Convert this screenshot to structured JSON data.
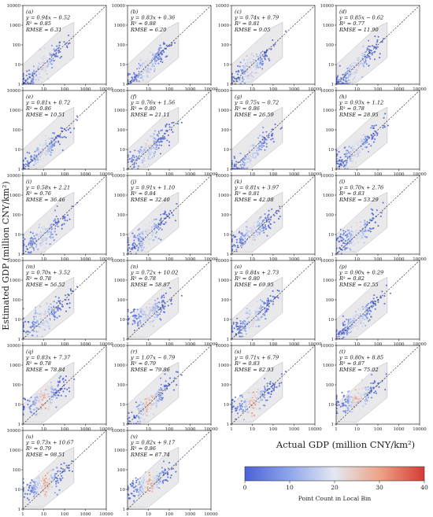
{
  "figure": {
    "ylabel": "Estimated GDP (million CNY/km²)",
    "xlabel": "Actual GDP (million CNY/km²)",
    "colorbar": {
      "label": "Point Count in Local Bin",
      "ticks": [
        0,
        10,
        20,
        30,
        40
      ],
      "range": [
        0,
        40
      ],
      "colors": [
        "#4a62d6",
        "#8fa6ec",
        "#e4e8f2",
        "#eda487",
        "#d53c34"
      ]
    }
  },
  "chart_data": [
    {
      "type": "scatter",
      "panel": "(a)",
      "equation": "y = 0.94x − 0.52",
      "r2": "R² = 0.85",
      "rmse": "RMSE = 6.31",
      "slope": 0.94,
      "intercept": -0.52,
      "spread": 0.26,
      "xlim": [
        1,
        10000
      ],
      "ylim": [
        1,
        10000
      ],
      "xticks": [
        "1",
        "10",
        "100",
        "1000",
        "10000"
      ],
      "yticks": [
        "1",
        "10",
        "100",
        "1000",
        "10000"
      ],
      "scale": "log",
      "reference_line": "y = x (dashed)"
    },
    {
      "type": "scatter",
      "panel": "(b)",
      "equation": "y = 0.83x + 0.36",
      "r2": "R² = 0.88",
      "rmse": "RMSE = 6.20",
      "slope": 0.83,
      "intercept": 0.36,
      "spread": 0.25,
      "xlim": [
        1,
        10000
      ],
      "ylim": [
        1,
        10000
      ],
      "xticks": [
        "1",
        "10",
        "100",
        "1000",
        "10000"
      ],
      "yticks": [
        "1",
        "10",
        "100",
        "1000",
        "10000"
      ],
      "scale": "log",
      "reference_line": "y = x (dashed)"
    },
    {
      "type": "scatter",
      "panel": "(c)",
      "equation": "y = 0.74x + 0.79",
      "r2": "R² = 0.81",
      "rmse": "RMSE = 9.05",
      "slope": 0.74,
      "intercept": 0.79,
      "spread": 0.28,
      "xlim": [
        1,
        10000
      ],
      "ylim": [
        1,
        10000
      ],
      "xticks": [
        "1",
        "10",
        "100",
        "1000",
        "10000"
      ],
      "yticks": [
        "1",
        "10",
        "100",
        "1000",
        "10000"
      ],
      "scale": "log",
      "reference_line": "y = x (dashed)"
    },
    {
      "type": "scatter",
      "panel": "(d)",
      "equation": "y = 0.85x − 0.62",
      "r2": "R² = 0.77",
      "rmse": "RMSE = 11.90",
      "slope": 0.85,
      "intercept": -0.62,
      "spread": 0.3,
      "xlim": [
        1,
        10000
      ],
      "ylim": [
        1,
        10000
      ],
      "xticks": [
        "1",
        "10",
        "100",
        "1000",
        "10000"
      ],
      "yticks": [
        "1",
        "10",
        "100",
        "1000",
        "10000"
      ],
      "scale": "log",
      "reference_line": "y = x (dashed)"
    },
    {
      "type": "scatter",
      "panel": "(e)",
      "equation": "y = 0.81x + 0.72",
      "r2": "R² = 0.86",
      "rmse": "RMSE = 10.51",
      "slope": 0.81,
      "intercept": 0.72,
      "spread": 0.26,
      "xlim": [
        1,
        10000
      ],
      "ylim": [
        1,
        10000
      ],
      "xticks": [
        "1",
        "10",
        "100",
        "1000",
        "10000"
      ],
      "yticks": [
        "1",
        "10",
        "100",
        "1000",
        "10000"
      ],
      "scale": "log",
      "reference_line": "y = x (dashed)"
    },
    {
      "type": "scatter",
      "panel": "(f)",
      "equation": "y = 0.76x + 1.56",
      "r2": "R² = 0.80",
      "rmse": "RMSE = 21.11",
      "slope": 0.76,
      "intercept": 1.56,
      "spread": 0.28,
      "xlim": [
        1,
        10000
      ],
      "ylim": [
        1,
        10000
      ],
      "xticks": [
        "1",
        "10",
        "100",
        "1000",
        "10000"
      ],
      "yticks": [
        "1",
        "10",
        "100",
        "1000",
        "10000"
      ],
      "scale": "log",
      "reference_line": "y = x (dashed)"
    },
    {
      "type": "scatter",
      "panel": "(g)",
      "equation": "y = 0.75x − 0.72",
      "r2": "R² = 0.86",
      "rmse": "RMSE = 26.59",
      "slope": 0.75,
      "intercept": -0.72,
      "spread": 0.26,
      "xlim": [
        1,
        10000
      ],
      "ylim": [
        1,
        10000
      ],
      "xticks": [
        "1",
        "10",
        "100",
        "1000",
        "10000"
      ],
      "yticks": [
        "1",
        "10",
        "100",
        "1000",
        "10000"
      ],
      "scale": "log",
      "reference_line": "y = x (dashed)"
    },
    {
      "type": "scatter",
      "panel": "(h)",
      "equation": "y = 0.93x + 1.12",
      "r2": "R² = 0.78",
      "rmse": "RMSE = 28.95",
      "slope": 0.93,
      "intercept": 1.12,
      "spread": 0.29,
      "xlim": [
        1,
        10000
      ],
      "ylim": [
        1,
        10000
      ],
      "xticks": [
        "1",
        "10",
        "100",
        "1000",
        "10000"
      ],
      "yticks": [
        "1",
        "10",
        "100",
        "1000",
        "10000"
      ],
      "scale": "log",
      "reference_line": "y = x (dashed)"
    },
    {
      "type": "scatter",
      "panel": "(i)",
      "equation": "y = 0.58x + 2.21",
      "r2": "R² = 0.76",
      "rmse": "RMSE = 36.46",
      "slope": 0.58,
      "intercept": 2.21,
      "spread": 0.3,
      "xlim": [
        1,
        10000
      ],
      "ylim": [
        1,
        10000
      ],
      "xticks": [
        "1",
        "10",
        "100",
        "1000",
        "10000"
      ],
      "yticks": [
        "1",
        "10",
        "100",
        "1000",
        "10000"
      ],
      "scale": "log",
      "reference_line": "y = x (dashed)"
    },
    {
      "type": "scatter",
      "panel": "(j)",
      "equation": "y = 0.91x + 1.10",
      "r2": "R² = 0.84",
      "rmse": "RMSE = 32.40",
      "slope": 0.91,
      "intercept": 1.1,
      "spread": 0.27,
      "xlim": [
        1,
        10000
      ],
      "ylim": [
        1,
        10000
      ],
      "xticks": [
        "1",
        "10",
        "100",
        "1000",
        "10000"
      ],
      "yticks": [
        "1",
        "10",
        "100",
        "1000",
        "10000"
      ],
      "scale": "log",
      "reference_line": "y = x (dashed)"
    },
    {
      "type": "scatter",
      "panel": "(k)",
      "equation": "y = 0.81x + 3.97",
      "r2": "R² = 0.81",
      "rmse": "RMSE = 42.08",
      "slope": 0.81,
      "intercept": 3.97,
      "spread": 0.28,
      "xlim": [
        1,
        10000
      ],
      "ylim": [
        1,
        10000
      ],
      "xticks": [
        "1",
        "10",
        "100",
        "1000",
        "10000"
      ],
      "yticks": [
        "1",
        "10",
        "100",
        "1000",
        "10000"
      ],
      "scale": "log",
      "reference_line": "y = x (dashed)"
    },
    {
      "type": "scatter",
      "panel": "(l)",
      "equation": "y = 0.70x + 2.76",
      "r2": "R² = 0.83",
      "rmse": "RMSE = 53.29",
      "slope": 0.7,
      "intercept": 2.76,
      "spread": 0.27,
      "xlim": [
        1,
        10000
      ],
      "ylim": [
        1,
        10000
      ],
      "xticks": [
        "1",
        "10",
        "100",
        "1000",
        "10000"
      ],
      "yticks": [
        "1",
        "10",
        "100",
        "1000",
        "10000"
      ],
      "scale": "log",
      "reference_line": "y = x (dashed)"
    },
    {
      "type": "scatter",
      "panel": "(m)",
      "equation": "y = 0.70x + 3.52",
      "r2": "R² = 0.78",
      "rmse": "RMSE = 56.52",
      "slope": 0.7,
      "intercept": 3.52,
      "spread": 0.29,
      "xlim": [
        1,
        10000
      ],
      "ylim": [
        1,
        10000
      ],
      "xticks": [
        "1",
        "10",
        "100",
        "1000",
        "10000"
      ],
      "yticks": [
        "1",
        "10",
        "100",
        "1000",
        "10000"
      ],
      "scale": "log",
      "reference_line": "y = x (dashed)"
    },
    {
      "type": "scatter",
      "panel": "(n)",
      "equation": "y = 0.72x + 10.02",
      "r2": "R² = 0.78",
      "rmse": "RMSE = 58.87",
      "slope": 0.72,
      "intercept": 10.02,
      "spread": 0.29,
      "xlim": [
        1,
        10000
      ],
      "ylim": [
        1,
        10000
      ],
      "xticks": [
        "1",
        "10",
        "100",
        "1000",
        "10000"
      ],
      "yticks": [
        "1",
        "10",
        "100",
        "1000",
        "10000"
      ],
      "scale": "log",
      "reference_line": "y = x (dashed)"
    },
    {
      "type": "scatter",
      "panel": "(o)",
      "equation": "y = 0.84x + 2.73",
      "r2": "R² = 0.80",
      "rmse": "RMSE = 69.95",
      "slope": 0.84,
      "intercept": 2.73,
      "spread": 0.28,
      "xlim": [
        1,
        10000
      ],
      "ylim": [
        1,
        10000
      ],
      "xticks": [
        "1",
        "10",
        "100",
        "1000",
        "10000"
      ],
      "yticks": [
        "1",
        "10",
        "100",
        "1000",
        "10000"
      ],
      "scale": "log",
      "reference_line": "y = x (dashed)"
    },
    {
      "type": "scatter",
      "panel": "(p)",
      "equation": "y = 0.90x + 0.29",
      "r2": "R² = 0.82",
      "rmse": "RMSE = 62.55",
      "slope": 0.9,
      "intercept": 0.29,
      "spread": 0.27,
      "xlim": [
        1,
        10000
      ],
      "ylim": [
        1,
        10000
      ],
      "xticks": [
        "1",
        "10",
        "100",
        "1000",
        "10000"
      ],
      "yticks": [
        "1",
        "10",
        "100",
        "1000",
        "10000"
      ],
      "scale": "log",
      "reference_line": "y = x (dashed)"
    },
    {
      "type": "scatter",
      "panel": "(q)",
      "equation": "y = 0.83x + 7.37",
      "r2": "R² = 0.78",
      "rmse": "RMSE = 78.84",
      "slope": 0.83,
      "intercept": 7.37,
      "spread": 0.29,
      "xlim": [
        1,
        10000
      ],
      "ylim": [
        1,
        10000
      ],
      "xticks": [
        "1",
        "10",
        "100",
        "1000",
        "10000"
      ],
      "yticks": [
        "1",
        "10",
        "100",
        "1000",
        "10000"
      ],
      "scale": "log",
      "reference_line": "y = x (dashed)"
    },
    {
      "type": "scatter",
      "panel": "(r)",
      "equation": "y = 1.07x − 0.79",
      "r2": "R² = 0.79",
      "rmse": "RMSE = 79.86",
      "slope": 1.07,
      "intercept": -0.79,
      "spread": 0.29,
      "xlim": [
        1,
        10000
      ],
      "ylim": [
        1,
        10000
      ],
      "xticks": [
        "1",
        "10",
        "100",
        "1000",
        "10000"
      ],
      "yticks": [
        "1",
        "10",
        "100",
        "1000",
        "10000"
      ],
      "scale": "log",
      "reference_line": "y = x (dashed)"
    },
    {
      "type": "scatter",
      "panel": "(s)",
      "equation": "y = 0.71x + 6.79",
      "r2": "R² = 0.83",
      "rmse": "RMSE = 82.93",
      "slope": 0.71,
      "intercept": 6.79,
      "spread": 0.27,
      "xlim": [
        1,
        10000
      ],
      "ylim": [
        1,
        10000
      ],
      "xticks": [
        "1",
        "10",
        "100",
        "1000",
        "10000"
      ],
      "yticks": [
        "1",
        "10",
        "100",
        "1000",
        "10000"
      ],
      "scale": "log",
      "reference_line": "y = x (dashed)"
    },
    {
      "type": "scatter",
      "panel": "(t)",
      "equation": "y = 0.80x + 8.85",
      "r2": "R² = 0.87",
      "rmse": "RMSE = 75.02",
      "slope": 0.8,
      "intercept": 8.85,
      "spread": 0.25,
      "xlim": [
        1,
        10000
      ],
      "ylim": [
        1,
        10000
      ],
      "xticks": [
        "1",
        "10",
        "100",
        "1000",
        "10000"
      ],
      "yticks": [
        "1",
        "10",
        "100",
        "1000",
        "10000"
      ],
      "scale": "log",
      "reference_line": "y = x (dashed)"
    },
    {
      "type": "scatter",
      "panel": "(u)",
      "equation": "y = 0.73x + 10.67",
      "r2": "R² = 0.79",
      "rmse": "RMSE = 98.51",
      "slope": 0.73,
      "intercept": 10.67,
      "spread": 0.29,
      "xlim": [
        1,
        10000
      ],
      "ylim": [
        1,
        10000
      ],
      "xticks": [
        "1",
        "10",
        "100",
        "1000",
        "10000"
      ],
      "yticks": [
        "1",
        "10",
        "100",
        "1000",
        "10000"
      ],
      "scale": "log",
      "reference_line": "y = x (dashed)"
    },
    {
      "type": "scatter",
      "panel": "(v)",
      "equation": "y = 0.82x + 9.17",
      "r2": "R² = 0.86",
      "rmse": "RMSE = 87.74",
      "slope": 0.82,
      "intercept": 9.17,
      "spread": 0.26,
      "xlim": [
        1,
        10000
      ],
      "ylim": [
        1,
        10000
      ],
      "xticks": [
        "1",
        "10",
        "100",
        "1000",
        "10000"
      ],
      "yticks": [
        "1",
        "10",
        "100",
        "1000",
        "10000"
      ],
      "scale": "log",
      "reference_line": "y = x (dashed)"
    }
  ]
}
